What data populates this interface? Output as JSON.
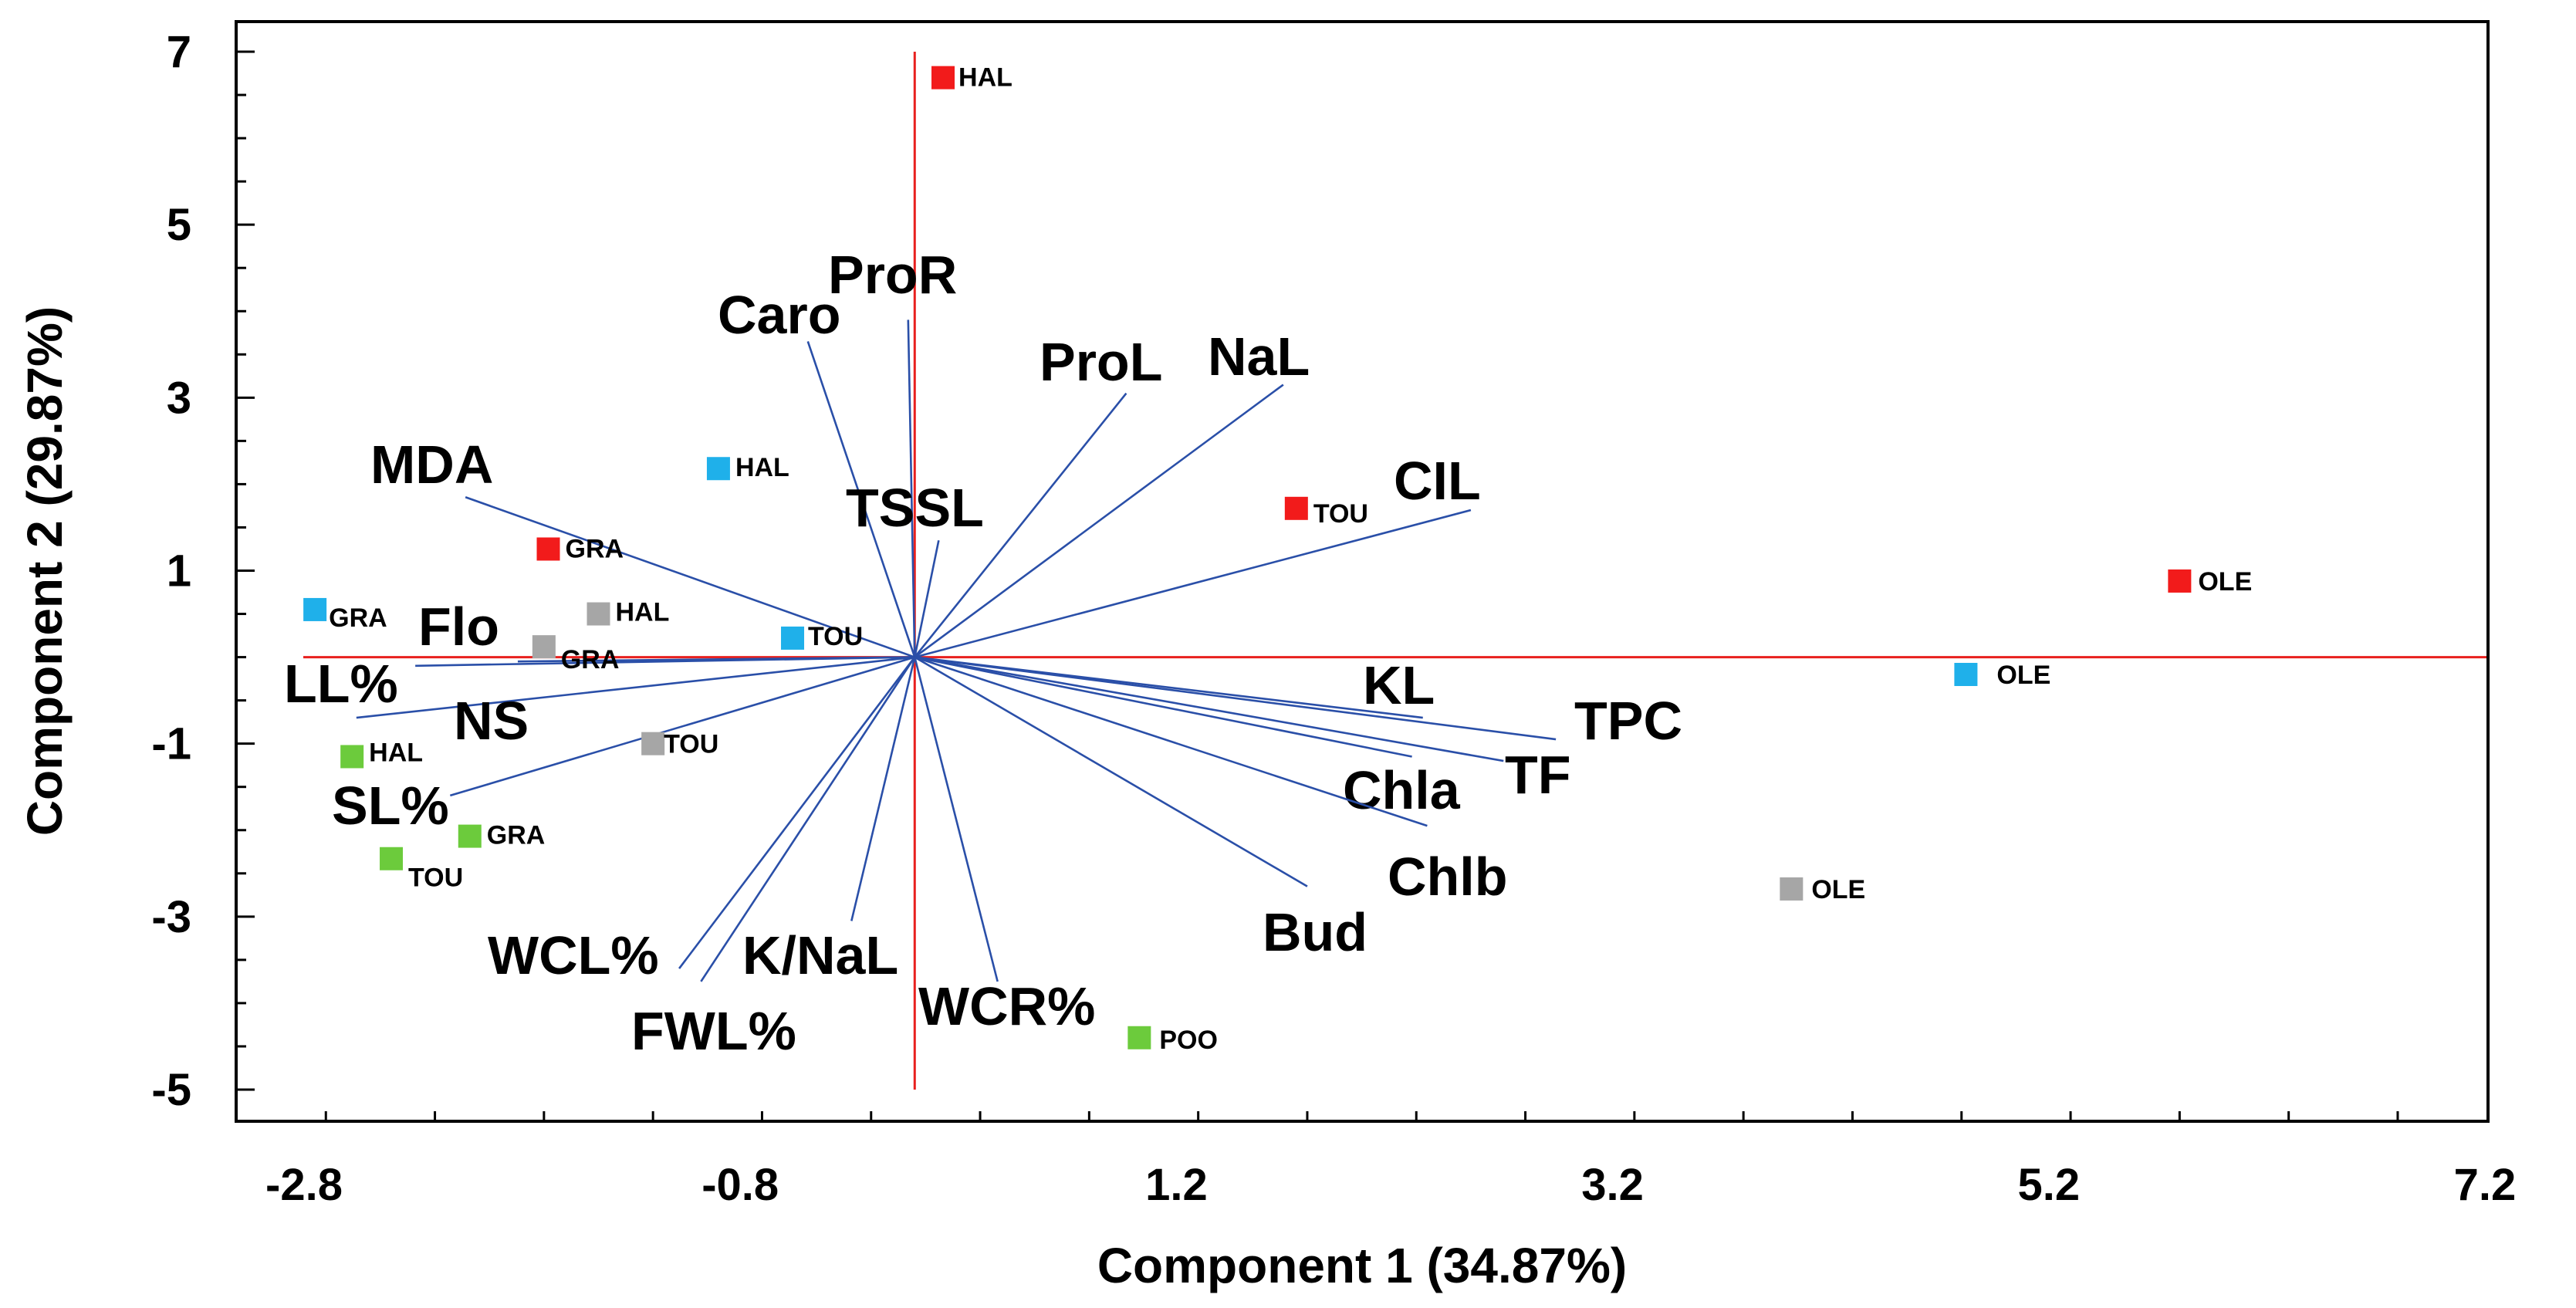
{
  "chart_data": {
    "type": "scatter",
    "subtype": "biplot",
    "xlabel": "Component 1 (34.87%)",
    "ylabel": "Component 2 (29.87%)",
    "xlim": [
      -3.2,
      7.4
    ],
    "ylim": [
      -5.3,
      7.6
    ],
    "x_ticks": [
      "-2.8",
      "-0.8",
      "1.2",
      "3.2",
      "5.2",
      "7.2"
    ],
    "x_tick_values": [
      -2.8,
      -0.8,
      1.2,
      3.2,
      5.2,
      7.2
    ],
    "y_ticks": [
      "7",
      "5",
      "3",
      "1",
      "-1",
      "-3",
      "-5"
    ],
    "y_tick_values": [
      7,
      5,
      3,
      1,
      -1,
      -3,
      -5
    ],
    "grid": false,
    "reference_lines": {
      "x": 0,
      "y": 0,
      "color": "#e8201e"
    },
    "colors": {
      "vector": "#2a4fa8",
      "red": "#f21b1b",
      "blue": "#1fb0ea",
      "gray": "#a6a6a6",
      "green": "#6ccb3c"
    },
    "vectors": [
      {
        "label": "ProR",
        "end": [
          -0.03,
          3.9
        ]
      },
      {
        "label": "Caro",
        "end": [
          -0.49,
          3.65
        ]
      },
      {
        "label": "ProL",
        "end": [
          0.97,
          3.05
        ]
      },
      {
        "label": "NaL",
        "end": [
          1.69,
          3.15
        ]
      },
      {
        "label": "TSSL",
        "end": [
          0.11,
          1.35
        ]
      },
      {
        "label": "MDA",
        "end": [
          -2.06,
          1.85
        ]
      },
      {
        "label": "CIL",
        "end": [
          2.55,
          1.7
        ]
      },
      {
        "label": "Flo",
        "end": [
          -1.82,
          -0.05
        ]
      },
      {
        "label": "LL%",
        "end": [
          -2.29,
          -0.1
        ]
      },
      {
        "label": "NS",
        "end": [
          -2.56,
          -0.7
        ]
      },
      {
        "label": "SL%",
        "end": [
          -2.13,
          -1.6
        ]
      },
      {
        "label": "KL",
        "end": [
          2.33,
          -0.7
        ]
      },
      {
        "label": "TPC",
        "end": [
          2.94,
          -0.95
        ]
      },
      {
        "label": "TF",
        "end": [
          2.7,
          -1.2
        ]
      },
      {
        "label": "Chla",
        "end": [
          2.28,
          -1.15
        ]
      },
      {
        "label": "Chlb",
        "end": [
          2.35,
          -1.95
        ]
      },
      {
        "label": "Bud",
        "end": [
          1.8,
          -2.65
        ]
      },
      {
        "label": "WCL%",
        "end": [
          -1.08,
          -3.6
        ]
      },
      {
        "label": "FWL%",
        "end": [
          -0.98,
          -3.75
        ]
      },
      {
        "label": "K/NaL",
        "end": [
          -0.29,
          -3.05
        ]
      },
      {
        "label": "WCR%",
        "end": [
          0.38,
          -3.75
        ]
      }
    ],
    "points": [
      {
        "label": "HAL",
        "group": "red",
        "x": 0.13,
        "y": 6.7
      },
      {
        "label": "GRA",
        "group": "red",
        "x": -1.68,
        "y": 1.25
      },
      {
        "label": "TOU",
        "group": "red",
        "x": 1.75,
        "y": 1.72
      },
      {
        "label": "OLE",
        "group": "red",
        "x": 5.8,
        "y": 0.88
      },
      {
        "label": "HAL",
        "group": "blue",
        "x": -0.9,
        "y": 2.18
      },
      {
        "label": "GRA",
        "group": "blue",
        "x": -2.75,
        "y": 0.55
      },
      {
        "label": "TOU",
        "group": "blue",
        "x": -0.56,
        "y": 0.22
      },
      {
        "label": "OLE",
        "group": "blue",
        "x": 4.82,
        "y": -0.2
      },
      {
        "label": "HAL",
        "group": "gray",
        "x": -1.45,
        "y": 0.5
      },
      {
        "label": "GRA",
        "group": "gray",
        "x": -1.7,
        "y": 0.12
      },
      {
        "label": "TOU",
        "group": "gray",
        "x": -1.2,
        "y": -1.0
      },
      {
        "label": "OLE",
        "group": "gray",
        "x": 4.02,
        "y": -2.68
      },
      {
        "label": "HAL",
        "group": "green",
        "x": -2.58,
        "y": -1.15
      },
      {
        "label": "GRA",
        "group": "green",
        "x": -2.04,
        "y": -2.07
      },
      {
        "label": "TOU",
        "group": "green",
        "x": -2.4,
        "y": -2.33
      },
      {
        "label": "POO",
        "group": "green",
        "x": 1.03,
        "y": -4.4
      }
    ]
  }
}
